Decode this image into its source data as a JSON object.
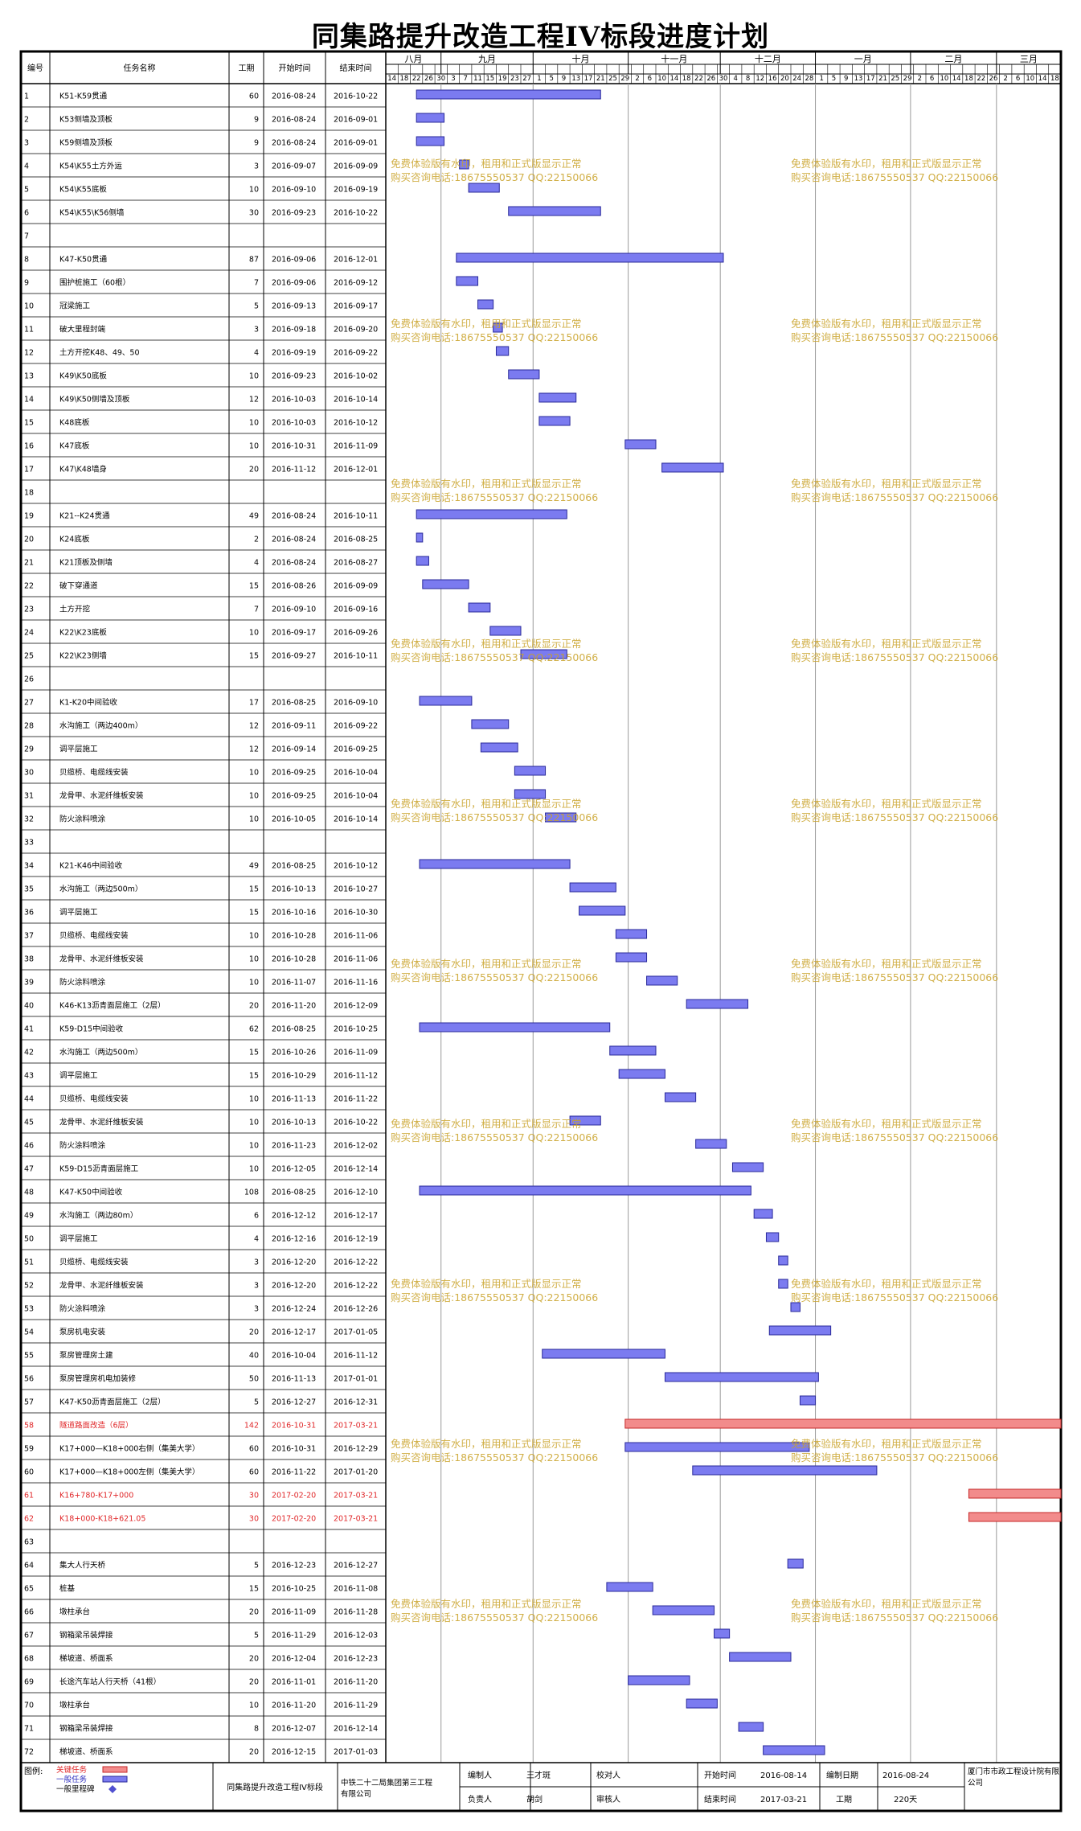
{
  "title": "同集路提升改造工程IV标段进度计划",
  "columns": {
    "no": "编号",
    "name": "任务名称",
    "dur": "工期",
    "start": "开始时间",
    "end": "结束时间"
  },
  "months": [
    {
      "label": "八月",
      "start": "2016-08-14",
      "end": "2016-09-01"
    },
    {
      "label": "九月",
      "start": "2016-09-01",
      "end": "2016-10-01"
    },
    {
      "label": "十月",
      "start": "2016-10-01",
      "end": "2016-11-01"
    },
    {
      "label": "十一月",
      "start": "2016-11-01",
      "end": "2016-12-01"
    },
    {
      "label": "十二月",
      "start": "2016-12-01",
      "end": "2017-01-01"
    },
    {
      "label": "一月",
      "start": "2017-01-01",
      "end": "2017-02-01"
    },
    {
      "label": "二月",
      "start": "2017-02-01",
      "end": "2017-03-01"
    },
    {
      "label": "三月",
      "start": "2017-03-01",
      "end": "2017-03-22"
    }
  ],
  "day_ticks": [
    "14",
    "18",
    "22",
    "26",
    "30",
    "3",
    "7",
    "11",
    "15",
    "19",
    "23",
    "27",
    "1",
    "5",
    "9",
    "13",
    "17",
    "21",
    "25",
    "29",
    "2",
    "6",
    "10",
    "14",
    "18",
    "22",
    "26",
    "30",
    "4",
    "8",
    "12",
    "16",
    "20",
    "24",
    "28",
    "1",
    "5",
    "9",
    "13",
    "17",
    "21",
    "25",
    "29",
    "2",
    "6",
    "10",
    "14",
    "18",
    "22",
    "26",
    "2",
    "6",
    "10",
    "14",
    "18"
  ],
  "colors": {
    "normal": "#7b7bf0",
    "critical": "#f28b8b",
    "critical_text": "#e0282a",
    "milestone": "#5050d0"
  },
  "watermark": [
    "免费体验版有水印，租用和正式版显示正常",
    "购买咨询电话:18675550537 QQ:22150066"
  ],
  "tasks": [
    {
      "no": "1",
      "name": "K51-K59贯通",
      "dur": "60",
      "start": "2016-08-24",
      "end": "2016-10-22"
    },
    {
      "no": "2",
      "name": "K53侧墙及顶板",
      "dur": "9",
      "start": "2016-08-24",
      "end": "2016-09-01"
    },
    {
      "no": "3",
      "name": "K59侧墙及顶板",
      "dur": "9",
      "start": "2016-08-24",
      "end": "2016-09-01"
    },
    {
      "no": "4",
      "name": "K54\\K55土方外运",
      "dur": "3",
      "start": "2016-09-07",
      "end": "2016-09-09"
    },
    {
      "no": "5",
      "name": "K54\\K55底板",
      "dur": "10",
      "start": "2016-09-10",
      "end": "2016-09-19"
    },
    {
      "no": "6",
      "name": "K54\\K55\\K56侧墙",
      "dur": "30",
      "start": "2016-09-23",
      "end": "2016-10-22"
    },
    {
      "no": "7",
      "name": "",
      "dur": "",
      "start": "",
      "end": ""
    },
    {
      "no": "8",
      "name": "K47-K50贯通",
      "dur": "87",
      "start": "2016-09-06",
      "end": "2016-12-01"
    },
    {
      "no": "9",
      "name": "围护桩施工（60根）",
      "dur": "7",
      "start": "2016-09-06",
      "end": "2016-09-12"
    },
    {
      "no": "10",
      "name": "冠梁施工",
      "dur": "5",
      "start": "2016-09-13",
      "end": "2016-09-17"
    },
    {
      "no": "11",
      "name": "破大里程封端",
      "dur": "3",
      "start": "2016-09-18",
      "end": "2016-09-20"
    },
    {
      "no": "12",
      "name": "土方开挖K48、49、50",
      "dur": "4",
      "start": "2016-09-19",
      "end": "2016-09-22"
    },
    {
      "no": "13",
      "name": "K49\\K50底板",
      "dur": "10",
      "start": "2016-09-23",
      "end": "2016-10-02"
    },
    {
      "no": "14",
      "name": "K49\\K50侧墙及顶板",
      "dur": "12",
      "start": "2016-10-03",
      "end": "2016-10-14"
    },
    {
      "no": "15",
      "name": "K48底板",
      "dur": "10",
      "start": "2016-10-03",
      "end": "2016-10-12"
    },
    {
      "no": "16",
      "name": "K47底板",
      "dur": "10",
      "start": "2016-10-31",
      "end": "2016-11-09"
    },
    {
      "no": "17",
      "name": "K47\\K48墙身",
      "dur": "20",
      "start": "2016-11-12",
      "end": "2016-12-01"
    },
    {
      "no": "18",
      "name": "",
      "dur": "",
      "start": "",
      "end": ""
    },
    {
      "no": "19",
      "name": "K21--K24贯通",
      "dur": "49",
      "start": "2016-08-24",
      "end": "2016-10-11"
    },
    {
      "no": "20",
      "name": "K24底板",
      "dur": "2",
      "start": "2016-08-24",
      "end": "2016-08-25"
    },
    {
      "no": "21",
      "name": "K21顶板及侧墙",
      "dur": "4",
      "start": "2016-08-24",
      "end": "2016-08-27"
    },
    {
      "no": "22",
      "name": "破下穿通道",
      "dur": "15",
      "start": "2016-08-26",
      "end": "2016-09-09"
    },
    {
      "no": "23",
      "name": "土方开挖",
      "dur": "7",
      "start": "2016-09-10",
      "end": "2016-09-16"
    },
    {
      "no": "24",
      "name": "K22\\K23底板",
      "dur": "10",
      "start": "2016-09-17",
      "end": "2016-09-26"
    },
    {
      "no": "25",
      "name": "K22\\K23侧墙",
      "dur": "15",
      "start": "2016-09-27",
      "end": "2016-10-11"
    },
    {
      "no": "26",
      "name": "",
      "dur": "",
      "start": "",
      "end": ""
    },
    {
      "no": "27",
      "name": "K1-K20中间验收",
      "dur": "17",
      "start": "2016-08-25",
      "end": "2016-09-10"
    },
    {
      "no": "28",
      "name": "水沟施工（两边400m）",
      "dur": "12",
      "start": "2016-09-11",
      "end": "2016-09-22"
    },
    {
      "no": "29",
      "name": "调平层施工",
      "dur": "12",
      "start": "2016-09-14",
      "end": "2016-09-25"
    },
    {
      "no": "30",
      "name": "贝缆桥、电缆线安装",
      "dur": "10",
      "start": "2016-09-25",
      "end": "2016-10-04"
    },
    {
      "no": "31",
      "name": "龙骨甲、水泥纤维板安装",
      "dur": "10",
      "start": "2016-09-25",
      "end": "2016-10-04"
    },
    {
      "no": "32",
      "name": "防火涂料喷涂",
      "dur": "10",
      "start": "2016-10-05",
      "end": "2016-10-14"
    },
    {
      "no": "33",
      "name": "",
      "dur": "",
      "start": "",
      "end": ""
    },
    {
      "no": "34",
      "name": "K21-K46中间验收",
      "dur": "49",
      "start": "2016-08-25",
      "end": "2016-10-12"
    },
    {
      "no": "35",
      "name": "水沟施工（两边500m）",
      "dur": "15",
      "start": "2016-10-13",
      "end": "2016-10-27"
    },
    {
      "no": "36",
      "name": "调平层施工",
      "dur": "15",
      "start": "2016-10-16",
      "end": "2016-10-30"
    },
    {
      "no": "37",
      "name": "贝缆桥、电缆线安装",
      "dur": "10",
      "start": "2016-10-28",
      "end": "2016-11-06"
    },
    {
      "no": "38",
      "name": "龙骨甲、水泥纤维板安装",
      "dur": "10",
      "start": "2016-10-28",
      "end": "2016-11-06"
    },
    {
      "no": "39",
      "name": "防火涂料喷涂",
      "dur": "10",
      "start": "2016-11-07",
      "end": "2016-11-16"
    },
    {
      "no": "40",
      "name": "K46-K13沥青面层施工（2层）",
      "dur": "20",
      "start": "2016-11-20",
      "end": "2016-12-09"
    },
    {
      "no": "41",
      "name": "K59-D15中间验收",
      "dur": "62",
      "start": "2016-08-25",
      "end": "2016-10-25"
    },
    {
      "no": "42",
      "name": "水沟施工（两边500m）",
      "dur": "15",
      "start": "2016-10-26",
      "end": "2016-11-09"
    },
    {
      "no": "43",
      "name": "调平层施工",
      "dur": "15",
      "start": "2016-10-29",
      "end": "2016-11-12"
    },
    {
      "no": "44",
      "name": "贝缆桥、电缆线安装",
      "dur": "10",
      "start": "2016-11-13",
      "end": "2016-11-22"
    },
    {
      "no": "45",
      "name": "龙骨甲、水泥纤维板安装",
      "dur": "10",
      "start": "2016-10-13",
      "end": "2016-10-22"
    },
    {
      "no": "46",
      "name": "防火涂料喷涂",
      "dur": "10",
      "start": "2016-11-23",
      "end": "2016-12-02"
    },
    {
      "no": "47",
      "name": "K59-D15沥青面层施工",
      "dur": "10",
      "start": "2016-12-05",
      "end": "2016-12-14"
    },
    {
      "no": "48",
      "name": "K47-K50中间验收",
      "dur": "108",
      "start": "2016-08-25",
      "end": "2016-12-10"
    },
    {
      "no": "49",
      "name": "水沟施工（两边80m）",
      "dur": "6",
      "start": "2016-12-12",
      "end": "2016-12-17"
    },
    {
      "no": "50",
      "name": "调平层施工",
      "dur": "4",
      "start": "2016-12-16",
      "end": "2016-12-19"
    },
    {
      "no": "51",
      "name": "贝缆桥、电缆线安装",
      "dur": "3",
      "start": "2016-12-20",
      "end": "2016-12-22"
    },
    {
      "no": "52",
      "name": "龙骨甲、水泥纤维板安装",
      "dur": "3",
      "start": "2016-12-20",
      "end": "2016-12-22"
    },
    {
      "no": "53",
      "name": "防火涂料喷涂",
      "dur": "3",
      "start": "2016-12-24",
      "end": "2016-12-26"
    },
    {
      "no": "54",
      "name": "泵房机电安装",
      "dur": "20",
      "start": "2016-12-17",
      "end": "2017-01-05"
    },
    {
      "no": "55",
      "name": "泵房管理房土建",
      "dur": "40",
      "start": "2016-10-04",
      "end": "2016-11-12"
    },
    {
      "no": "56",
      "name": "泵房管理房机电加装修",
      "dur": "50",
      "start": "2016-11-13",
      "end": "2017-01-01"
    },
    {
      "no": "57",
      "name": "K47-K50沥青面层施工（2层）",
      "dur": "5",
      "start": "2016-12-27",
      "end": "2016-12-31"
    },
    {
      "no": "58",
      "name": "隧道路面改造（6层）",
      "dur": "142",
      "start": "2016-10-31",
      "end": "2017-03-21",
      "critical": true
    },
    {
      "no": "59",
      "name": "K17+000—K18+000右侧（集美大学）",
      "dur": "60",
      "start": "2016-10-31",
      "end": "2016-12-29"
    },
    {
      "no": "60",
      "name": "K17+000—K18+000左侧（集美大学）",
      "dur": "60",
      "start": "2016-11-22",
      "end": "2017-01-20"
    },
    {
      "no": "61",
      "name": "K16+780-K17+000",
      "dur": "30",
      "start": "2017-02-20",
      "end": "2017-03-21",
      "critical": true
    },
    {
      "no": "62",
      "name": "K18+000-K18+621.05",
      "dur": "30",
      "start": "2017-02-20",
      "end": "2017-03-21",
      "critical": true
    },
    {
      "no": "63",
      "name": "",
      "dur": "",
      "start": "",
      "end": ""
    },
    {
      "no": "64",
      "name": "集大人行天桥",
      "dur": "5",
      "start": "2016-12-23",
      "end": "2016-12-27"
    },
    {
      "no": "65",
      "name": "桩基",
      "dur": "15",
      "start": "2016-10-25",
      "end": "2016-11-08"
    },
    {
      "no": "66",
      "name": "墩柱承台",
      "dur": "20",
      "start": "2016-11-09",
      "end": "2016-11-28"
    },
    {
      "no": "67",
      "name": "钢箱梁吊装焊接",
      "dur": "5",
      "start": "2016-11-29",
      "end": "2016-12-03"
    },
    {
      "no": "68",
      "name": "梯坡道、桥面系",
      "dur": "20",
      "start": "2016-12-04",
      "end": "2016-12-23"
    },
    {
      "no": "69",
      "name": "长途汽车站人行天桥（41根）",
      "dur": "20",
      "start": "2016-11-01",
      "end": "2016-11-20"
    },
    {
      "no": "70",
      "name": "墩柱承台",
      "dur": "10",
      "start": "2016-11-20",
      "end": "2016-11-29"
    },
    {
      "no": "71",
      "name": "钢箱梁吊装焊接",
      "dur": "8",
      "start": "2016-12-07",
      "end": "2016-12-14"
    },
    {
      "no": "72",
      "name": "梯坡道、桥面系",
      "dur": "20",
      "start": "2016-12-15",
      "end": "2017-01-03"
    }
  ],
  "footer": {
    "legend_title": "图例:",
    "legend": [
      "关键任务",
      "一般任务",
      "一般里程碑"
    ],
    "project": "同集路提升改造工程IV标段",
    "company": "中铁二十二局集团第三工程有限公司",
    "editor_label": "编制人",
    "editor": "王才斑",
    "checker_label": "校对人",
    "checker": "",
    "leader_label": "负责人",
    "leader": "胡剑",
    "reviewer_label": "审核人",
    "reviewer": "",
    "start_label": "开始时间",
    "start": "2016-08-14",
    "end_label": "结束时间",
    "end": "2017-03-21",
    "edit_date_label": "编制日期",
    "edit_date": "2016-08-24",
    "duration_label": "工期",
    "duration": "220天",
    "design": "厦门市市政工程设计院有限公司"
  }
}
